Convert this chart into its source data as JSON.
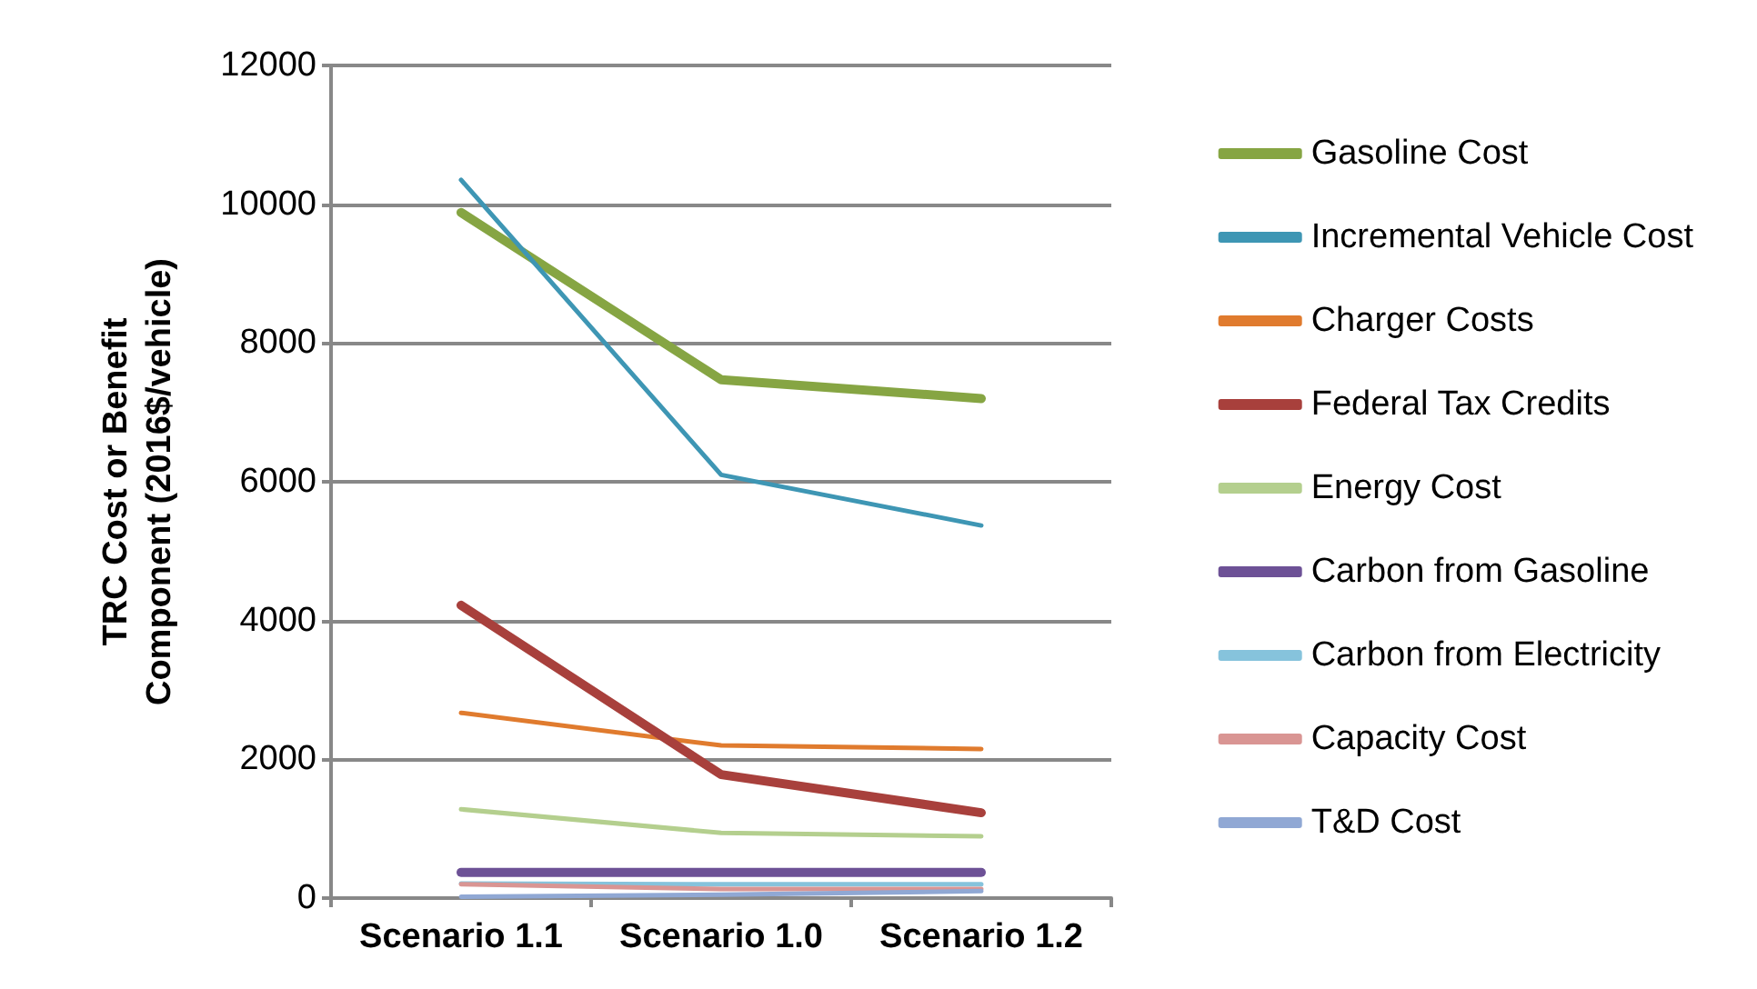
{
  "chart_data": {
    "type": "line",
    "ylabel": "TRC Cost or Benefit\nComponent (2016$/vehicle)",
    "categories": [
      "Scenario 1.1",
      "Scenario 1.0",
      "Scenario 1.2"
    ],
    "ylim": [
      0,
      12000
    ],
    "yticks": [
      0,
      2000,
      4000,
      6000,
      8000,
      10000,
      12000
    ],
    "grid": "y",
    "legend": "right",
    "marker": "none",
    "line_style": "solid",
    "series": [
      {
        "name": "Gasoline Cost",
        "color": "#86a543",
        "values": [
          9880,
          7470,
          7200
        ]
      },
      {
        "name": "Incremental Vehicle Cost",
        "color": "#3e96b4",
        "values": [
          10350,
          6100,
          5370
        ]
      },
      {
        "name": "Charger Costs",
        "color": "#e07b2e",
        "values": [
          2670,
          2200,
          2150
        ]
      },
      {
        "name": "Federal Tax Credits",
        "color": "#a8403c",
        "values": [
          4220,
          1780,
          1230
        ]
      },
      {
        "name": "Energy Cost",
        "color": "#b4cf8e",
        "values": [
          1280,
          940,
          890
        ]
      },
      {
        "name": "Carbon from Gasoline",
        "color": "#6d5196",
        "values": [
          370,
          370,
          370
        ]
      },
      {
        "name": "Carbon from Electricity",
        "color": "#86c3dc",
        "values": [
          210,
          200,
          200
        ]
      },
      {
        "name": "Capacity Cost",
        "color": "#d99593",
        "values": [
          200,
          130,
          130
        ]
      },
      {
        "name": "T&D Cost",
        "color": "#90a8d4",
        "values": [
          20,
          50,
          100
        ]
      }
    ]
  }
}
